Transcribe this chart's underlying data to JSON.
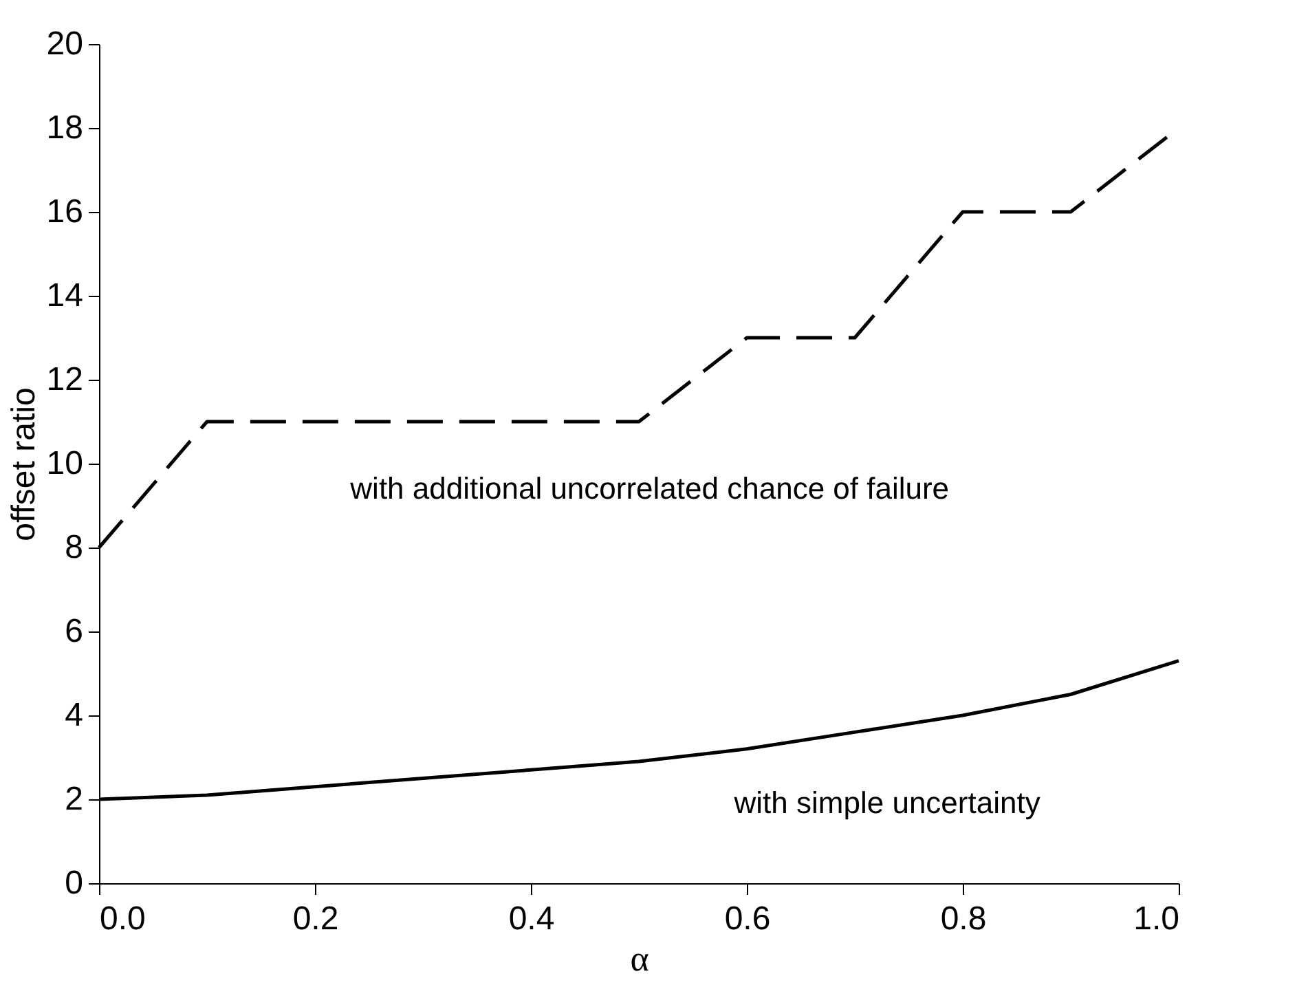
{
  "chart_data": {
    "type": "line",
    "xlabel": "α",
    "ylabel": "offset ratio",
    "x": [
      0.0,
      0.1,
      0.2,
      0.3,
      0.4,
      0.5,
      0.6,
      0.7,
      0.8,
      0.9,
      1.0
    ],
    "series": [
      {
        "name": "with additional uncorrelated chance of failure",
        "color": "#000000",
        "line_style": "dashed",
        "values": [
          8,
          11,
          11,
          11,
          11,
          11,
          13,
          13,
          16,
          16,
          18
        ]
      },
      {
        "name": "with simple uncertainty",
        "color": "#000000",
        "line_style": "solid",
        "values": [
          2.0,
          2.1,
          2.3,
          2.5,
          2.7,
          2.9,
          3.2,
          3.6,
          4.0,
          4.5,
          5.3
        ]
      }
    ],
    "xlim": [
      0,
      1
    ],
    "ylim": [
      0,
      20
    ],
    "xticks": [
      {
        "value": 0,
        "label": "0.0"
      },
      {
        "value": 0.2,
        "label": "0.2"
      },
      {
        "value": 0.4,
        "label": "0.4"
      },
      {
        "value": 0.6,
        "label": "0.6"
      },
      {
        "value": 0.8,
        "label": "0.8"
      },
      {
        "value": 1,
        "label": "1.0"
      }
    ],
    "yticks": [
      0,
      2,
      4,
      6,
      8,
      10,
      12,
      14,
      16,
      18,
      20
    ],
    "grid": false,
    "marker": "none"
  }
}
